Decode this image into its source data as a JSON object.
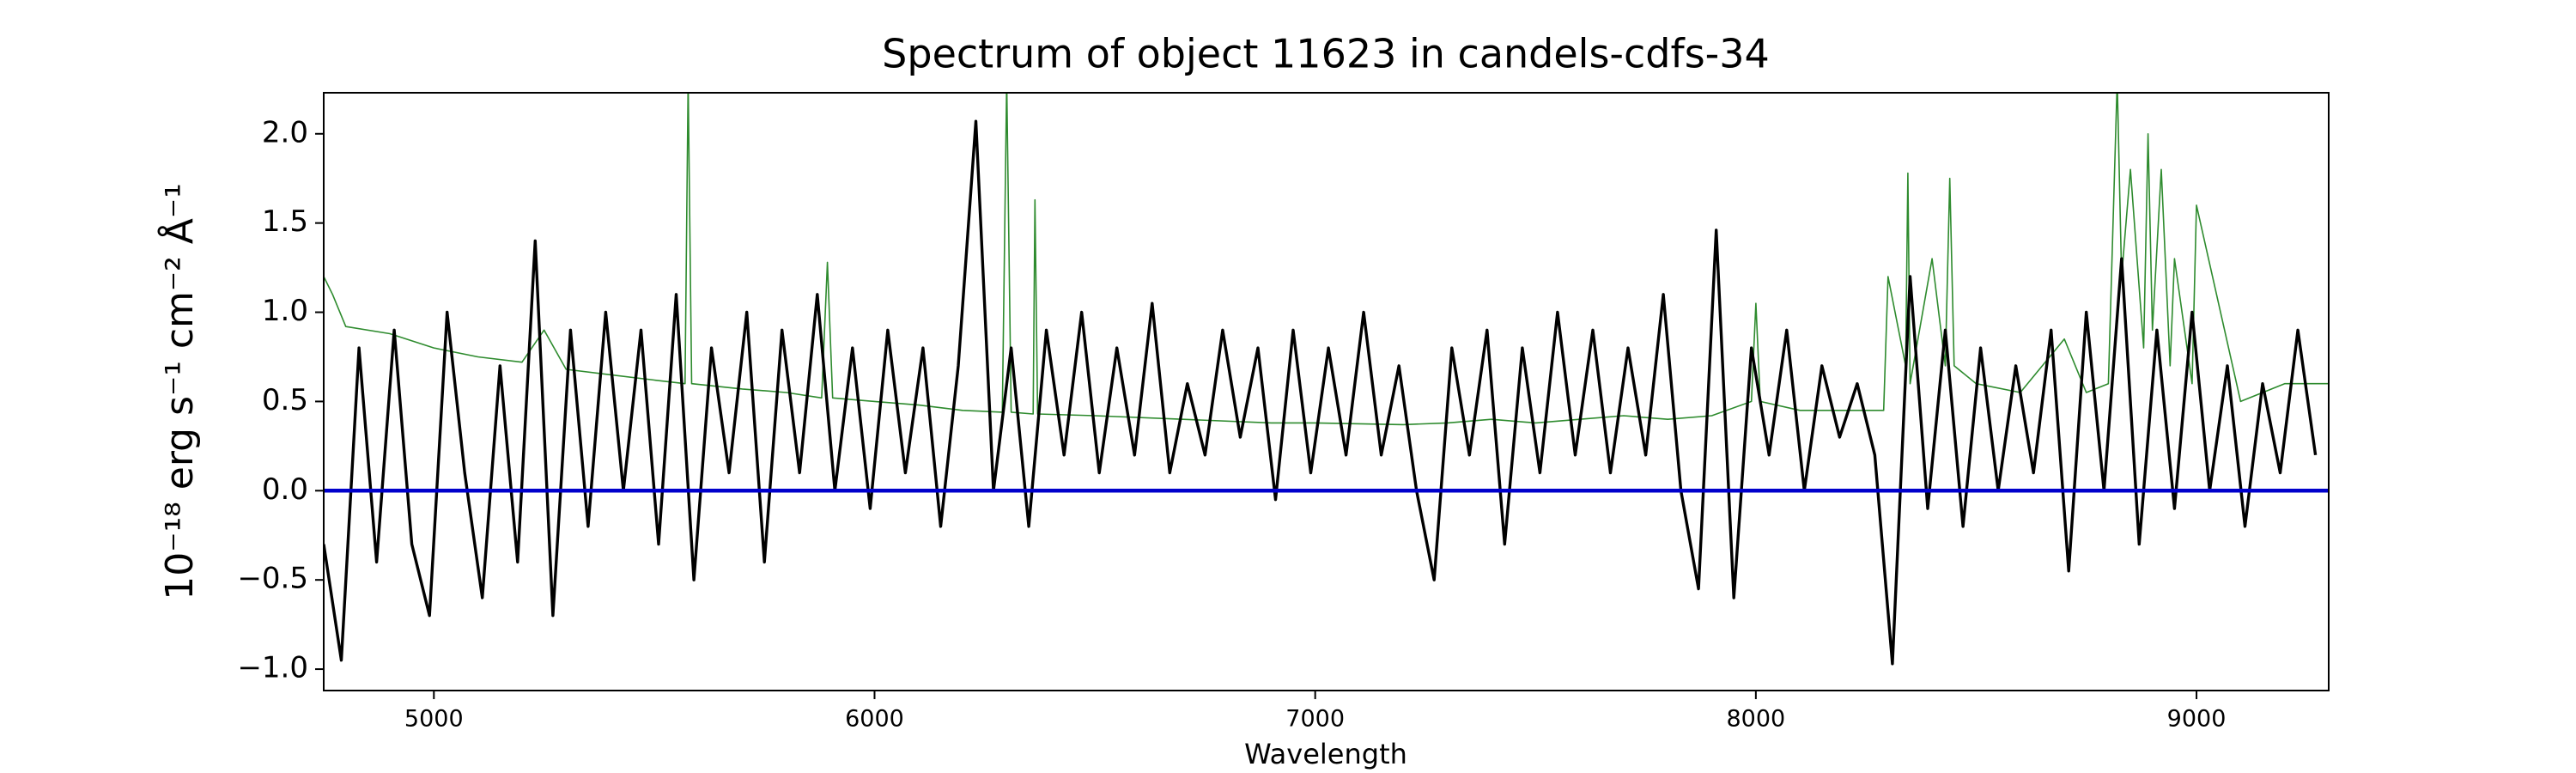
{
  "chart_data": {
    "type": "line",
    "title": "Spectrum of object 11623 in candels-cdfs-34",
    "x_label": "Wavelength",
    "y_label": "10⁻¹⁸ erg s⁻¹ cm⁻² Å⁻¹",
    "xlim": [
      4750,
      9300
    ],
    "ylim": [
      -1.12,
      2.23
    ],
    "xticks": [
      5000,
      6000,
      7000,
      8000,
      9000
    ],
    "yticks": [
      {
        "value": -1.0,
        "label": "−1.0"
      },
      {
        "value": -0.5,
        "label": "−0.5"
      },
      {
        "value": 0.0,
        "label": "0.0"
      },
      {
        "value": 0.5,
        "label": "0.5"
      },
      {
        "value": 1.0,
        "label": "1.0"
      },
      {
        "value": 1.5,
        "label": "1.5"
      },
      {
        "value": 2.0,
        "label": "2.0"
      }
    ],
    "grid": false,
    "series": [
      {
        "color": "#2e8b2e",
        "width": 1.6,
        "x": [
          4750,
          4770,
          4800,
          4900,
          5000,
          5100,
          5200,
          5250,
          5300,
          5400,
          5500,
          5570,
          5577,
          5585,
          5700,
          5800,
          5880,
          5893,
          5905,
          6000,
          6100,
          6200,
          6290,
          6300,
          6310,
          6360,
          6364,
          6370,
          6500,
          6700,
          6900,
          7000,
          7200,
          7300,
          7400,
          7500,
          7600,
          7700,
          7800,
          7900,
          7990,
          8000,
          8010,
          8100,
          8200,
          8290,
          8300,
          8340,
          8345,
          8350,
          8400,
          8430,
          8440,
          8450,
          8500,
          8600,
          8700,
          8750,
          8800,
          8820,
          8830,
          8850,
          8880,
          8890,
          8900,
          8920,
          8940,
          8950,
          8990,
          9000,
          9100,
          9200,
          9300
        ],
        "values": [
          1.2,
          1.1,
          0.92,
          0.88,
          0.8,
          0.75,
          0.72,
          0.9,
          0.68,
          0.65,
          0.62,
          0.6,
          2.3,
          0.6,
          0.57,
          0.55,
          0.52,
          1.28,
          0.52,
          0.5,
          0.48,
          0.45,
          0.44,
          2.3,
          0.44,
          0.43,
          1.63,
          0.43,
          0.42,
          0.4,
          0.38,
          0.38,
          0.37,
          0.38,
          0.4,
          0.38,
          0.4,
          0.42,
          0.4,
          0.42,
          0.5,
          1.05,
          0.5,
          0.45,
          0.45,
          0.45,
          1.2,
          0.7,
          1.78,
          0.6,
          1.3,
          0.7,
          1.75,
          0.7,
          0.6,
          0.55,
          0.85,
          0.55,
          0.6,
          2.3,
          1.2,
          1.8,
          0.8,
          2.0,
          0.9,
          1.8,
          0.7,
          1.3,
          0.6,
          1.6,
          0.5,
          0.6,
          0.6
        ]
      },
      {
        "color": "#000000",
        "width": 3.4,
        "x": [
          4750,
          4790,
          4830,
          4870,
          4910,
          4950,
          4990,
          5030,
          5070,
          5110,
          5150,
          5190,
          5230,
          5270,
          5310,
          5350,
          5390,
          5430,
          5470,
          5510,
          5550,
          5590,
          5630,
          5670,
          5710,
          5750,
          5790,
          5830,
          5870,
          5910,
          5950,
          5990,
          6030,
          6070,
          6110,
          6150,
          6190,
          6230,
          6270,
          6310,
          6350,
          6390,
          6430,
          6470,
          6510,
          6550,
          6590,
          6630,
          6670,
          6710,
          6750,
          6790,
          6830,
          6870,
          6910,
          6950,
          6990,
          7030,
          7070,
          7110,
          7150,
          7190,
          7230,
          7270,
          7310,
          7350,
          7390,
          7430,
          7470,
          7510,
          7550,
          7590,
          7630,
          7670,
          7710,
          7750,
          7790,
          7830,
          7870,
          7910,
          7950,
          7990,
          8030,
          8070,
          8110,
          8150,
          8190,
          8230,
          8270,
          8310,
          8350,
          8390,
          8430,
          8470,
          8510,
          8550,
          8590,
          8630,
          8670,
          8710,
          8750,
          8790,
          8830,
          8870,
          8910,
          8950,
          8990,
          9030,
          9070,
          9110,
          9150,
          9190,
          9230,
          9270
        ],
        "values": [
          -0.3,
          -0.95,
          0.8,
          -0.4,
          0.9,
          -0.3,
          -0.7,
          1.0,
          0.1,
          -0.6,
          0.7,
          -0.4,
          1.4,
          -0.7,
          0.9,
          -0.2,
          1.0,
          0.0,
          0.9,
          -0.3,
          1.1,
          -0.5,
          0.8,
          0.1,
          1.0,
          -0.4,
          0.9,
          0.1,
          1.1,
          0.0,
          0.8,
          -0.1,
          0.9,
          0.1,
          0.8,
          -0.2,
          0.7,
          2.07,
          0.0,
          0.8,
          -0.2,
          0.9,
          0.2,
          1.0,
          0.1,
          0.8,
          0.2,
          1.05,
          0.1,
          0.6,
          0.2,
          0.9,
          0.3,
          0.8,
          -0.05,
          0.9,
          0.1,
          0.8,
          0.2,
          1.0,
          0.2,
          0.7,
          0.0,
          -0.5,
          0.8,
          0.2,
          0.9,
          -0.3,
          0.8,
          0.1,
          1.0,
          0.2,
          0.9,
          0.1,
          0.8,
          0.2,
          1.1,
          0.0,
          -0.55,
          1.46,
          -0.6,
          0.8,
          0.2,
          0.9,
          0.0,
          0.7,
          0.3,
          0.6,
          0.2,
          -0.97,
          1.2,
          -0.1,
          0.9,
          -0.2,
          0.8,
          0.0,
          0.7,
          0.1,
          0.9,
          -0.45,
          1.0,
          0.0,
          1.3,
          -0.3,
          0.9,
          -0.1,
          1.0,
          0.0,
          0.7,
          -0.2,
          0.6,
          0.1,
          0.9,
          0.2
        ]
      },
      {
        "color": "#0000cc",
        "width": 4.5,
        "x": [
          4750,
          9300
        ],
        "values": [
          0,
          0
        ]
      }
    ]
  }
}
